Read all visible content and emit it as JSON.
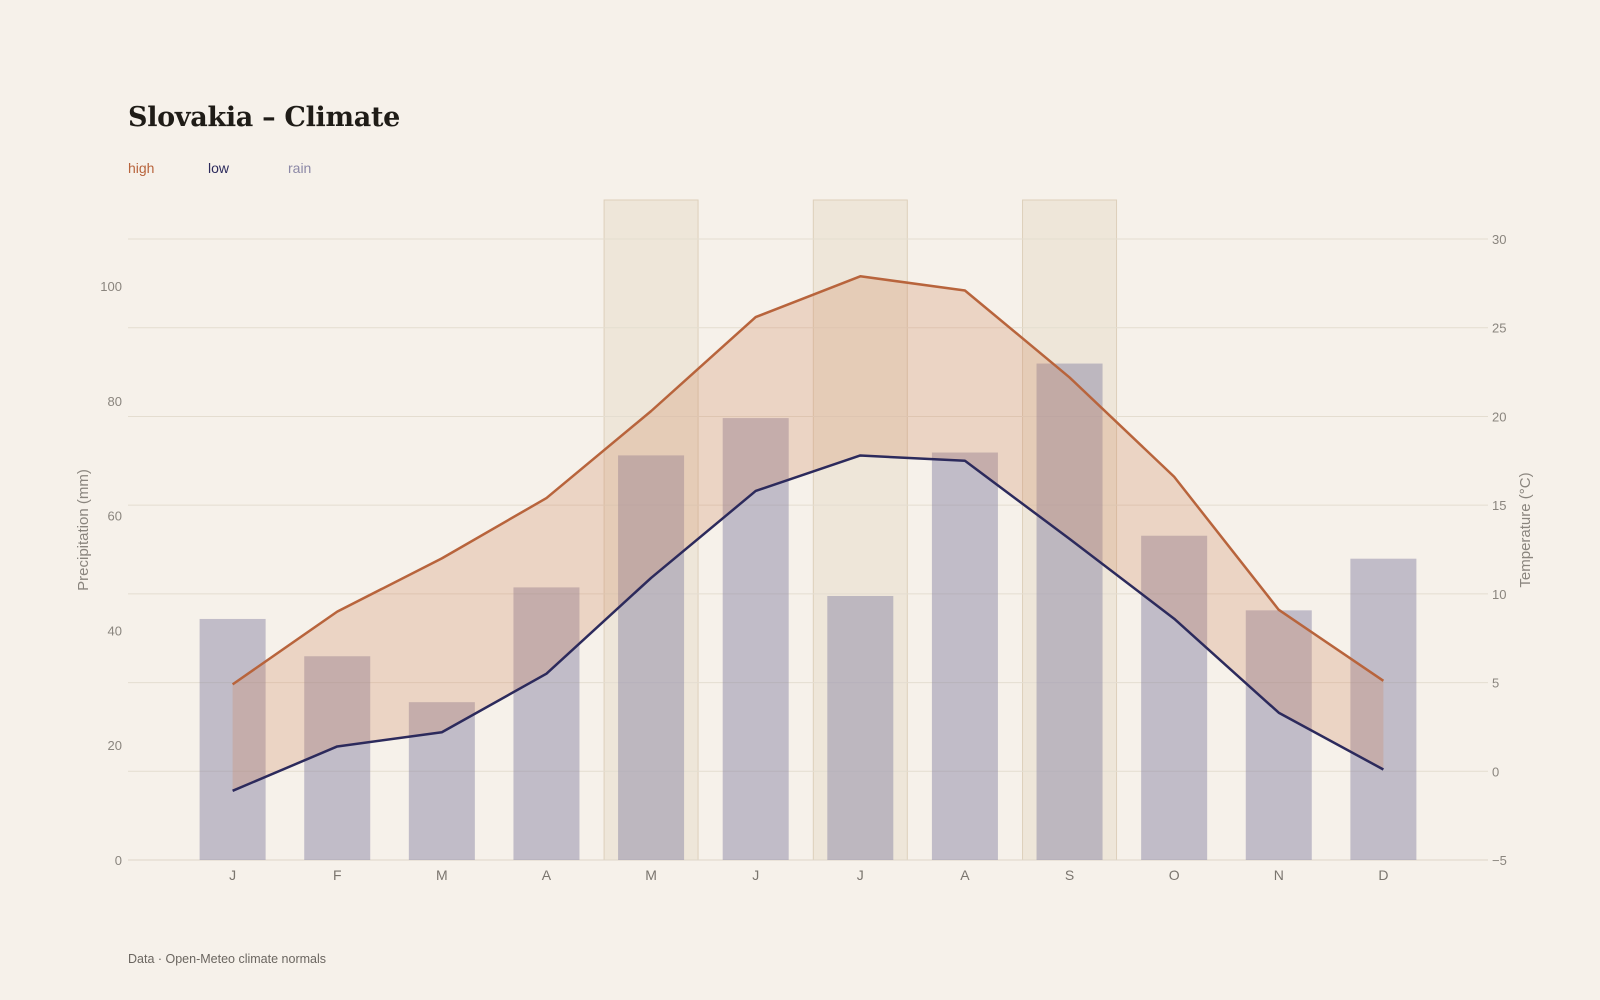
{
  "title": "Slovakia – Climate",
  "legend": [
    {
      "label": "high",
      "color": "#b8643c"
    },
    {
      "label": "low",
      "color": "#2c2a5c"
    },
    {
      "label": "rain",
      "color": "#8c88a6"
    }
  ],
  "footer": "Data · Open-Meteo climate normals",
  "chart_data": {
    "type": "bar+line",
    "categories": [
      "J",
      "F",
      "M",
      "A",
      "M",
      "J",
      "J",
      "A",
      "S",
      "O",
      "N",
      "D"
    ],
    "series": [
      {
        "name": "rain",
        "axis": "left",
        "kind": "bar",
        "values": [
          42,
          35.5,
          27.5,
          47.5,
          70.5,
          77,
          46,
          71,
          86.5,
          56.5,
          43.5,
          52.5
        ]
      },
      {
        "name": "high",
        "axis": "right",
        "kind": "line",
        "values": [
          4.9,
          9,
          12,
          15.4,
          20.3,
          25.6,
          27.9,
          27.1,
          22.2,
          16.6,
          9.1,
          5.1
        ]
      },
      {
        "name": "low",
        "axis": "right",
        "kind": "line",
        "values": [
          -1.1,
          1.4,
          2.2,
          5.5,
          10.9,
          15.8,
          17.8,
          17.5,
          13.1,
          8.6,
          3.3,
          0.1
        ]
      }
    ],
    "highlighted_months": [
      4,
      6,
      8
    ],
    "ylabel_left": "Precipitation (mm)",
    "ylabel_right": "Temperature (°C)",
    "ylim_left": [
      0,
      115
    ],
    "ylim_right": [
      -5,
      32.2
    ],
    "yticks_left": [
      0,
      20,
      40,
      60,
      80,
      100
    ],
    "yticks_right": [
      -5,
      0,
      5,
      10,
      15,
      20,
      25,
      30
    ],
    "grid": true,
    "legend_position": "top-left"
  }
}
